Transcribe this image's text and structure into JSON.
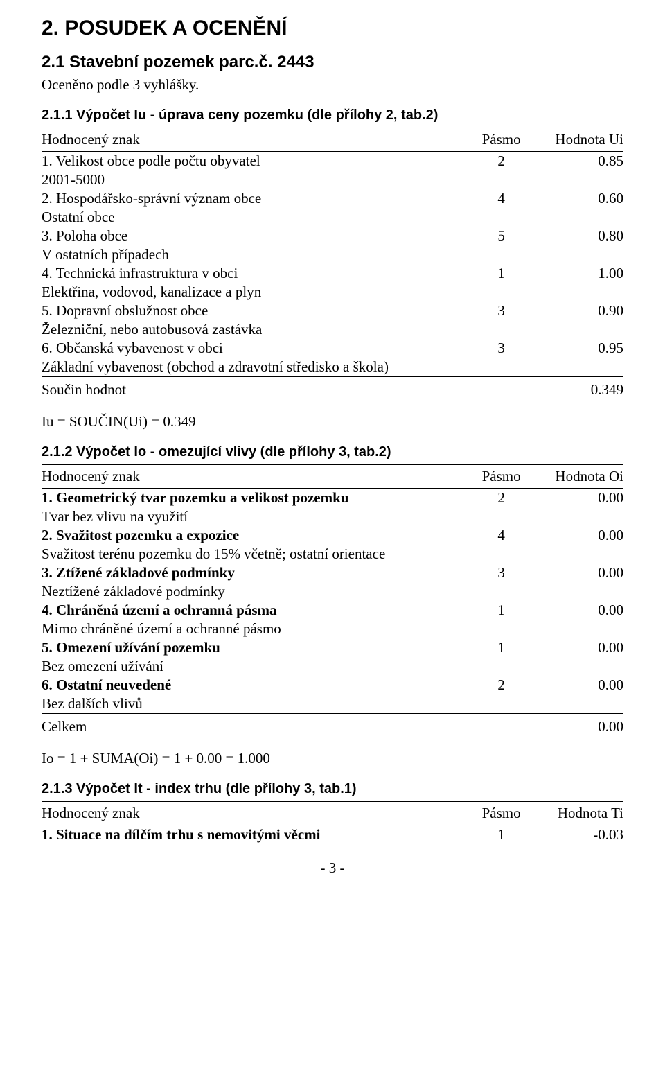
{
  "main_heading": "2. POSUDEK A OCENĚNÍ",
  "section_21_heading": "2.1 Stavební pozemek parc.č. 2443",
  "section_21_sub": "Oceněno podle 3 vyhlášky.",
  "section_211_heading": "2.1.1 Výpočet Iu - úprava ceny pozemku (dle přílohy 2, tab.2)",
  "table_u": {
    "header": {
      "znak": "Hodnocený znak",
      "pasmo": "Pásmo",
      "val": "Hodnota Ui"
    },
    "rows": [
      {
        "label": "1. Velikost obce podle počtu obyvatel",
        "sub": "2001-5000",
        "pasmo": "2",
        "val": "0.85"
      },
      {
        "label": "2. Hospodářsko-správní význam obce",
        "sub": "Ostatní obce",
        "pasmo": "4",
        "val": "0.60"
      },
      {
        "label": "3. Poloha obce",
        "sub": "V ostatních případech",
        "pasmo": "5",
        "val": "0.80"
      },
      {
        "label": "4. Technická infrastruktura v obci",
        "sub": "Elektřina, vodovod, kanalizace a plyn",
        "pasmo": "1",
        "val": "1.00"
      },
      {
        "label": "5. Dopravní obslužnost obce",
        "sub": "Železniční, nebo autobusová zastávka",
        "pasmo": "3",
        "val": "0.90"
      },
      {
        "label": "6. Občanská vybavenost v obci",
        "sub": "Základní vybavenost (obchod a zdravotní středisko a škola)",
        "pasmo": "3",
        "val": "0.95"
      }
    ],
    "total_label": "Součin hodnot",
    "total_val": "0.349",
    "formula": "Iu = SOUČIN(Ui) = 0.349"
  },
  "section_212_heading": "2.1.2 Výpočet Io - omezující vlivy (dle přílohy 3, tab.2)",
  "table_o": {
    "header": {
      "znak": "Hodnocený znak",
      "pasmo": "Pásmo",
      "val": "Hodnota Oi"
    },
    "rows": [
      {
        "label": "1. Geometrický tvar pozemku a velikost pozemku",
        "sub": "Tvar bez vlivu na využití",
        "pasmo": "2",
        "val": "0.00"
      },
      {
        "label": "2. Svažitost pozemku a expozice",
        "sub": "Svažitost terénu pozemku do 15% včetně; ostatní orientace",
        "pasmo": "4",
        "val": "0.00"
      },
      {
        "label": "3. Ztížené základové podmínky",
        "sub": "Neztížené základové podmínky",
        "pasmo": "3",
        "val": "0.00"
      },
      {
        "label": "4. Chráněná území a ochranná pásma",
        "sub": "Mimo chráněné území a ochranné pásmo",
        "pasmo": "1",
        "val": "0.00"
      },
      {
        "label": "5. Omezení užívání pozemku",
        "sub": "Bez omezení užívání",
        "pasmo": "1",
        "val": "0.00"
      },
      {
        "label": "6. Ostatní neuvedené",
        "sub": "Bez dalších vlivů",
        "pasmo": "2",
        "val": "0.00"
      }
    ],
    "total_label": "Celkem",
    "total_val": "0.00",
    "formula": "Io = 1 + SUMA(Oi) = 1 + 0.00 = 1.000"
  },
  "section_213_heading": "2.1.3 Výpočet It - index trhu (dle přílohy 3, tab.1)",
  "table_t": {
    "header": {
      "znak": "Hodnocený znak",
      "pasmo": "Pásmo",
      "val": "Hodnota Ti"
    },
    "row1": {
      "label": "1. Situace na dílčím trhu s nemovitými věcmi",
      "pasmo": "1",
      "val": "-0.03"
    }
  },
  "page_number": "- 3 -"
}
